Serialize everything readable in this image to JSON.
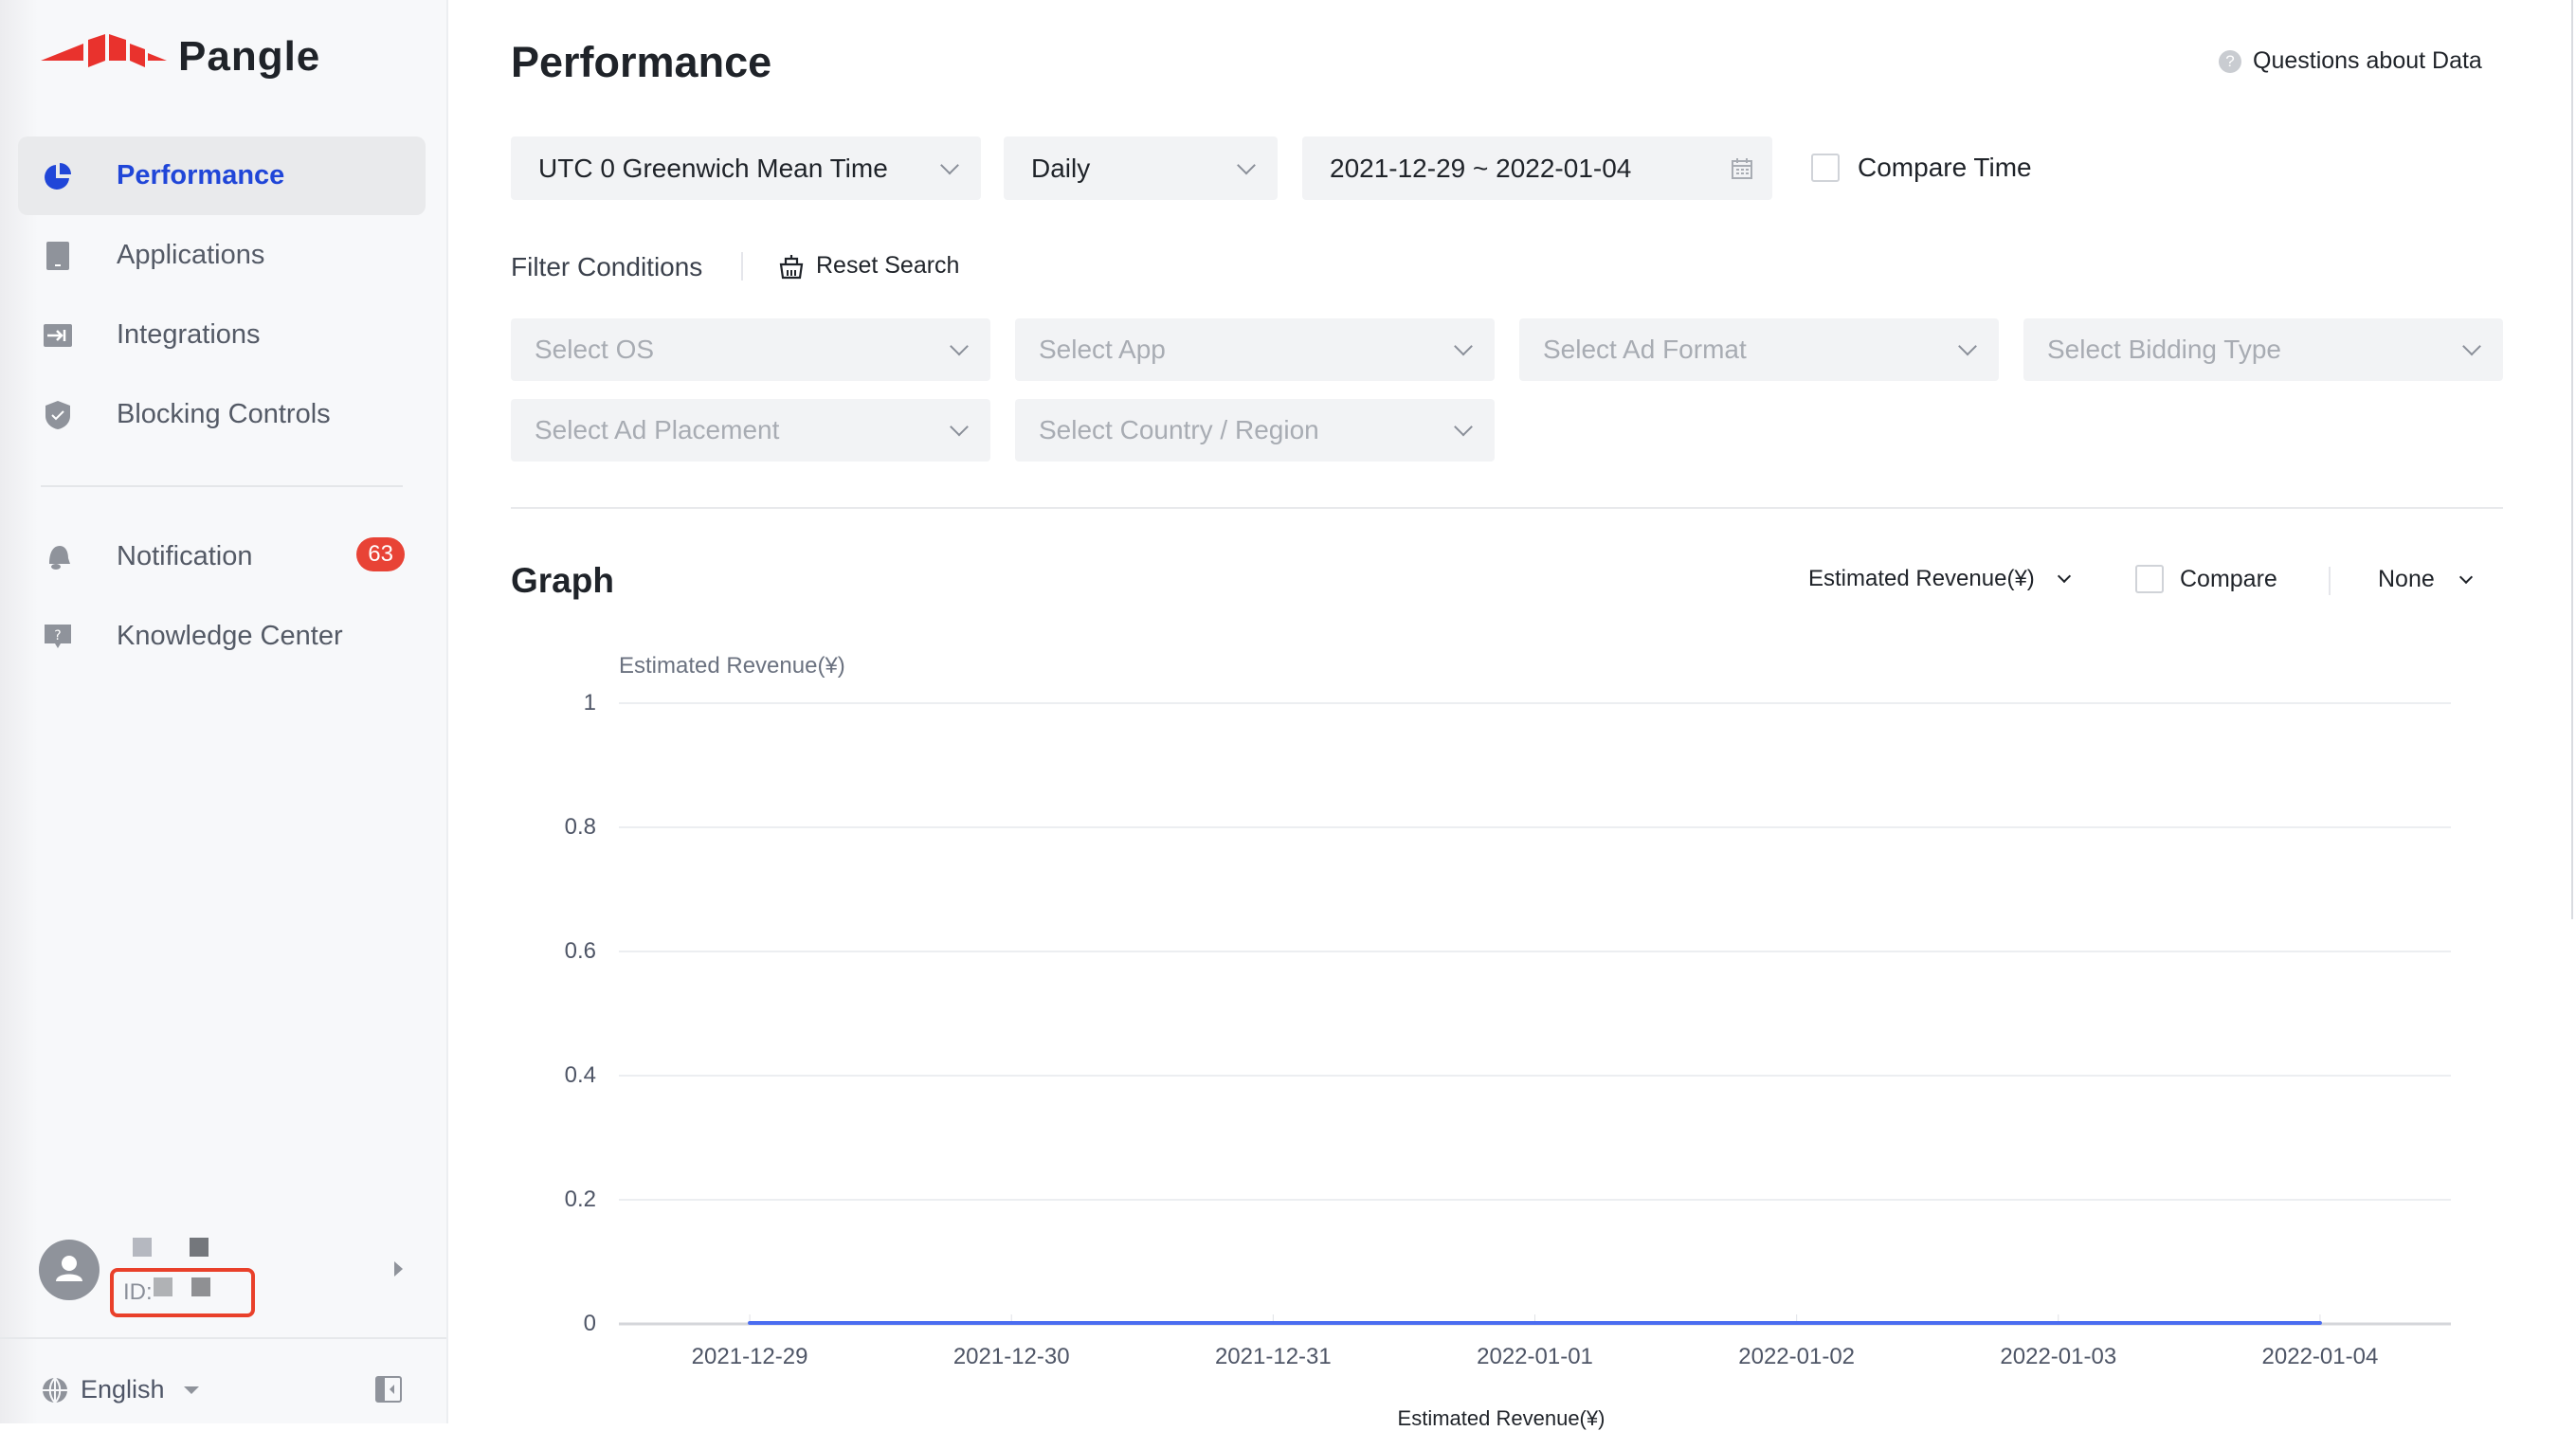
{
  "sidebar": {
    "logo": "Pangle",
    "items": [
      {
        "label": "Performance",
        "icon": "pie-chart-icon",
        "active": true
      },
      {
        "label": "Applications",
        "icon": "tablet-icon"
      },
      {
        "label": "Integrations",
        "icon": "integration-icon"
      },
      {
        "label": "Blocking Controls",
        "icon": "shield-check-icon"
      },
      {
        "label": "Notification",
        "icon": "bell-icon",
        "badge": "63"
      },
      {
        "label": "Knowledge Center",
        "icon": "question-bubble-icon"
      }
    ],
    "user": {
      "id_label": "ID:"
    },
    "language": "English"
  },
  "header": {
    "title": "Performance",
    "help_link": "Questions about Data"
  },
  "toolbar": {
    "timezone": "UTC 0 Greenwich Mean Time",
    "granularity": "Daily",
    "date_range": "2021-12-29 ~ 2022-01-04",
    "compare_time": "Compare Time",
    "compare_time_checked": false
  },
  "filters": {
    "title": "Filter Conditions",
    "reset": "Reset Search",
    "placeholders": [
      "Select OS",
      "Select App",
      "Select Ad Format",
      "Select Bidding Type",
      "Select Ad Placement",
      "Select Country / Region"
    ]
  },
  "graph": {
    "title": "Graph",
    "metric": "Estimated Revenue(¥)",
    "compare": "Compare",
    "compare_checked": false,
    "breakdown": "None"
  },
  "chart_data": {
    "type": "line",
    "ylabel": "Estimated Revenue(¥)",
    "categories": [
      "2021-12-29",
      "2021-12-30",
      "2021-12-31",
      "2022-01-01",
      "2022-01-02",
      "2022-01-03",
      "2022-01-04"
    ],
    "series": [
      {
        "name": "Estimated Revenue(¥)",
        "values": [
          0,
          0,
          0,
          0,
          0,
          0,
          0
        ],
        "color": "#4a6cf0"
      }
    ],
    "yticks": [
      "0",
      "0.2",
      "0.4",
      "0.6",
      "0.8",
      "1"
    ],
    "ylim": [
      0,
      1
    ],
    "grid": true,
    "legend": "bottom"
  }
}
